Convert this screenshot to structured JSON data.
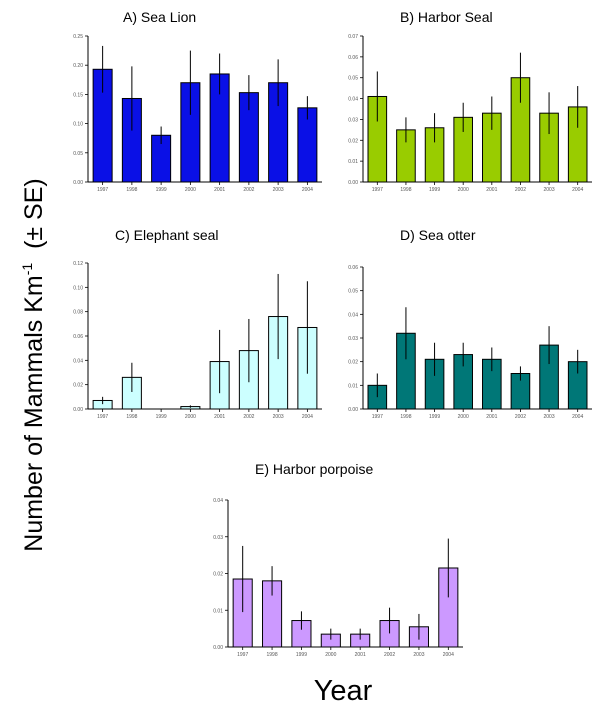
{
  "ylabel": "Number of Mammals Km",
  "ylabel_sup": "-1",
  "ylabel_suffix": "  (± SE)",
  "xlabel": "Year",
  "chart_data": [
    {
      "type": "bar",
      "title": "A) Sea Lion",
      "color": "#0a10e6",
      "categories": [
        "1997",
        "1998",
        "1999",
        "2000",
        "2001",
        "2002",
        "2003",
        "2004"
      ],
      "values": [
        0.193,
        0.143,
        0.08,
        0.17,
        0.185,
        0.153,
        0.17,
        0.127
      ],
      "errors": [
        0.04,
        0.055,
        0.015,
        0.055,
        0.035,
        0.03,
        0.04,
        0.02
      ],
      "ylim": [
        0,
        0.25
      ],
      "yticks": [
        "0.00",
        "0.05",
        "0.10",
        "0.15",
        "0.20",
        "0.25"
      ]
    },
    {
      "type": "bar",
      "title": "B) Harbor Seal",
      "color": "#99cc00",
      "categories": [
        "1997",
        "1998",
        "1999",
        "2000",
        "2001",
        "2002",
        "2003",
        "2004"
      ],
      "values": [
        0.041,
        0.025,
        0.026,
        0.031,
        0.033,
        0.05,
        0.033,
        0.036
      ],
      "errors": [
        0.012,
        0.006,
        0.007,
        0.007,
        0.008,
        0.012,
        0.01,
        0.01
      ],
      "ylim": [
        0,
        0.07
      ],
      "yticks": [
        "0.00",
        "0.01",
        "0.02",
        "0.03",
        "0.04",
        "0.05",
        "0.06",
        "0.07"
      ]
    },
    {
      "type": "bar",
      "title": "C) Elephant  seal",
      "color": "#ccffff",
      "categories": [
        "1997",
        "1998",
        "1999",
        "2000",
        "2001",
        "2002",
        "2003",
        "2004"
      ],
      "values": [
        0.007,
        0.026,
        0.0,
        0.002,
        0.039,
        0.048,
        0.076,
        0.067
      ],
      "errors": [
        0.003,
        0.012,
        0.0,
        0.001,
        0.026,
        0.026,
        0.035,
        0.038
      ],
      "ylim": [
        0,
        0.12
      ],
      "yticks": [
        "0.00",
        "0.02",
        "0.04",
        "0.06",
        "0.08",
        "0.10",
        "0.12"
      ]
    },
    {
      "type": "bar",
      "title": "D) Sea otter",
      "color": "#007777",
      "categories": [
        "1997",
        "1998",
        "1999",
        "2000",
        "2001",
        "2002",
        "2003",
        "2004"
      ],
      "values": [
        0.01,
        0.032,
        0.021,
        0.023,
        0.021,
        0.015,
        0.027,
        0.02
      ],
      "errors": [
        0.005,
        0.011,
        0.007,
        0.005,
        0.005,
        0.003,
        0.008,
        0.005
      ],
      "ylim": [
        0,
        0.06
      ],
      "yticks": [
        "0.00",
        "0.01",
        "0.02",
        "0.03",
        "0.04",
        "0.05",
        "0.06"
      ]
    },
    {
      "type": "bar",
      "title": "E) Harbor porpoise",
      "color": "#cc99ff",
      "categories": [
        "1997",
        "1998",
        "1999",
        "2000",
        "2001",
        "2002",
        "2003",
        "2004"
      ],
      "values": [
        0.0185,
        0.018,
        0.0072,
        0.0035,
        0.0035,
        0.0072,
        0.0055,
        0.0215
      ],
      "errors": [
        0.009,
        0.004,
        0.0025,
        0.0015,
        0.0015,
        0.0035,
        0.0035,
        0.008
      ],
      "ylim": [
        0,
        0.04
      ],
      "yticks": [
        "0.00",
        "0.01",
        "0.02",
        "0.03",
        "0.04"
      ]
    }
  ]
}
